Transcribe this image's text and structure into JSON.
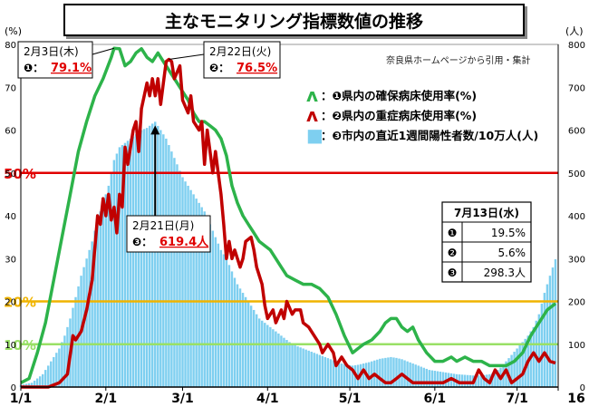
{
  "chart_data": {
    "title": "主なモニタリング指標数値の推移",
    "source_note": "奈良県ホームページから引用・集計",
    "y_left_unit": "(%)",
    "y_right_unit": "(人)",
    "y_left_ticks": [
      "0",
      "10",
      "20",
      "30",
      "40",
      "50",
      "60",
      "70",
      "80"
    ],
    "y_right_ticks": [
      "0",
      "100",
      "200",
      "300",
      "400",
      "500",
      "600",
      "700",
      "800"
    ],
    "ylim_left": [
      0,
      80
    ],
    "ylim_right": [
      0,
      800
    ],
    "x_ticks": [
      {
        "label": "1/1",
        "day": 0
      },
      {
        "label": "2/1",
        "day": 31
      },
      {
        "label": "3/1",
        "day": 59
      },
      {
        "label": "4/1",
        "day": 90
      },
      {
        "label": "5/1",
        "day": 120
      },
      {
        "label": "6/1",
        "day": 151
      },
      {
        "label": "7/1",
        "day": 181
      },
      {
        "label": "16",
        "day": 196
      }
    ],
    "x_range_days": [
      0,
      196
    ],
    "reference_lines": [
      {
        "value": 50,
        "label": "50%",
        "color": "#e00000"
      },
      {
        "value": 20,
        "label": "20%",
        "color": "#f0b400"
      },
      {
        "value": 10,
        "label": "10%",
        "color": "#99e066"
      }
    ],
    "legend": [
      {
        "marker": "ʌ",
        "text": "：❶県内の確保病床使用率(%)",
        "color": "#2db34a"
      },
      {
        "marker": "ʌ",
        "text": "：❷県内の重症病床使用率(%)",
        "color": "#c00000"
      },
      {
        "marker": "■",
        "text": "：❸市内の直近1週間陽性者数/10万人(人)",
        "color": "#7ecff0"
      }
    ],
    "series": [
      {
        "name": "❶県内の確保病床使用率(%)",
        "color": "#2db34a",
        "axis": "left",
        "points": [
          [
            0,
            1
          ],
          [
            3,
            2
          ],
          [
            6,
            8
          ],
          [
            9,
            15
          ],
          [
            12,
            25
          ],
          [
            15,
            35
          ],
          [
            18,
            45
          ],
          [
            21,
            55
          ],
          [
            24,
            62
          ],
          [
            27,
            68
          ],
          [
            30,
            72
          ],
          [
            33,
            77
          ],
          [
            34,
            79.1
          ],
          [
            36,
            79
          ],
          [
            38,
            75
          ],
          [
            40,
            76
          ],
          [
            42,
            78
          ],
          [
            44,
            79
          ],
          [
            46,
            77
          ],
          [
            48,
            76
          ],
          [
            50,
            78
          ],
          [
            52,
            76
          ],
          [
            53,
            75
          ],
          [
            55,
            73
          ],
          [
            57,
            71
          ],
          [
            59,
            69
          ],
          [
            61,
            67
          ],
          [
            63,
            64
          ],
          [
            65,
            62
          ],
          [
            67,
            62
          ],
          [
            69,
            61
          ],
          [
            71,
            60
          ],
          [
            73,
            58
          ],
          [
            75,
            54
          ],
          [
            77,
            47
          ],
          [
            79,
            43
          ],
          [
            81,
            40
          ],
          [
            83,
            38
          ],
          [
            85,
            36
          ],
          [
            87,
            34
          ],
          [
            89,
            33
          ],
          [
            91,
            32
          ],
          [
            93,
            30
          ],
          [
            95,
            28
          ],
          [
            97,
            26
          ],
          [
            100,
            25
          ],
          [
            103,
            24
          ],
          [
            106,
            24
          ],
          [
            109,
            23
          ],
          [
            112,
            21
          ],
          [
            115,
            17
          ],
          [
            118,
            12
          ],
          [
            121,
            8
          ],
          [
            123,
            9
          ],
          [
            125,
            10
          ],
          [
            128,
            11
          ],
          [
            131,
            13
          ],
          [
            133,
            15
          ],
          [
            135,
            16
          ],
          [
            137,
            16
          ],
          [
            139,
            14
          ],
          [
            141,
            13
          ],
          [
            143,
            14
          ],
          [
            145,
            11
          ],
          [
            148,
            8
          ],
          [
            151,
            6
          ],
          [
            154,
            6
          ],
          [
            157,
            7
          ],
          [
            159,
            6
          ],
          [
            162,
            7
          ],
          [
            165,
            6
          ],
          [
            168,
            6
          ],
          [
            171,
            5
          ],
          [
            174,
            5
          ],
          [
            177,
            5
          ],
          [
            180,
            6
          ],
          [
            183,
            8
          ],
          [
            186,
            12
          ],
          [
            189,
            15
          ],
          [
            192,
            18
          ],
          [
            195,
            19.5
          ]
        ]
      },
      {
        "name": "❷県内の重症病床使用率(%)",
        "color": "#c00000",
        "axis": "left",
        "points": [
          [
            0,
            0
          ],
          [
            10,
            0
          ],
          [
            14,
            1
          ],
          [
            17,
            3
          ],
          [
            19,
            12
          ],
          [
            20,
            11
          ],
          [
            22,
            13
          ],
          [
            24,
            18
          ],
          [
            26,
            25
          ],
          [
            28,
            40
          ],
          [
            29,
            38
          ],
          [
            30,
            44
          ],
          [
            31,
            40
          ],
          [
            32,
            45
          ],
          [
            33,
            39
          ],
          [
            34,
            42
          ],
          [
            35,
            36
          ],
          [
            36,
            45
          ],
          [
            37,
            42
          ],
          [
            38,
            56
          ],
          [
            39,
            52
          ],
          [
            41,
            60
          ],
          [
            42,
            62
          ],
          [
            43,
            55
          ],
          [
            44,
            65
          ],
          [
            46,
            71
          ],
          [
            47,
            68
          ],
          [
            48,
            72
          ],
          [
            49,
            68
          ],
          [
            50,
            72
          ],
          [
            51,
            66
          ],
          [
            52,
            71
          ],
          [
            53,
            76
          ],
          [
            54,
            76.5
          ],
          [
            55,
            76
          ],
          [
            56,
            72
          ],
          [
            58,
            75
          ],
          [
            59,
            67
          ],
          [
            61,
            64
          ],
          [
            62,
            68
          ],
          [
            63,
            62
          ],
          [
            65,
            60
          ],
          [
            66,
            62
          ],
          [
            67,
            52
          ],
          [
            68,
            60
          ],
          [
            69,
            55
          ],
          [
            70,
            50
          ],
          [
            71,
            55
          ],
          [
            72,
            50
          ],
          [
            73,
            45
          ],
          [
            74,
            38
          ],
          [
            75,
            30
          ],
          [
            76,
            34
          ],
          [
            77,
            30
          ],
          [
            78,
            32
          ],
          [
            80,
            28
          ],
          [
            81,
            30
          ],
          [
            82,
            34
          ],
          [
            84,
            35
          ],
          [
            85,
            32
          ],
          [
            86,
            28
          ],
          [
            88,
            24
          ],
          [
            89,
            19
          ],
          [
            90,
            16
          ],
          [
            92,
            18
          ],
          [
            93,
            15
          ],
          [
            95,
            18
          ],
          [
            96,
            16
          ],
          [
            97,
            20
          ],
          [
            99,
            17
          ],
          [
            100,
            18
          ],
          [
            102,
            18
          ],
          [
            103,
            15
          ],
          [
            105,
            14
          ],
          [
            107,
            12
          ],
          [
            109,
            10
          ],
          [
            110,
            8
          ],
          [
            112,
            10
          ],
          [
            114,
            8
          ],
          [
            115,
            5
          ],
          [
            117,
            7
          ],
          [
            119,
            5
          ],
          [
            121,
            4
          ],
          [
            123,
            2
          ],
          [
            125,
            4
          ],
          [
            127,
            2
          ],
          [
            129,
            3
          ],
          [
            131,
            2
          ],
          [
            133,
            1
          ],
          [
            135,
            1
          ],
          [
            137,
            2
          ],
          [
            139,
            3
          ],
          [
            141,
            2
          ],
          [
            143,
            1
          ],
          [
            145,
            1
          ],
          [
            148,
            1
          ],
          [
            151,
            1
          ],
          [
            154,
            1
          ],
          [
            157,
            2
          ],
          [
            160,
            1
          ],
          [
            163,
            1
          ],
          [
            165,
            1
          ],
          [
            167,
            4
          ],
          [
            169,
            2
          ],
          [
            171,
            1
          ],
          [
            173,
            4
          ],
          [
            175,
            2
          ],
          [
            177,
            4
          ],
          [
            179,
            1
          ],
          [
            181,
            2
          ],
          [
            183,
            3
          ],
          [
            185,
            6
          ],
          [
            187,
            8
          ],
          [
            189,
            6
          ],
          [
            191,
            8
          ],
          [
            193,
            6
          ],
          [
            195,
            5.6
          ]
        ]
      },
      {
        "name": "❸市内の直近1週間陽性者数/10万人(人)",
        "color": "#7ecff0",
        "axis": "right",
        "points": [
          [
            0,
            5
          ],
          [
            4,
            10
          ],
          [
            8,
            30
          ],
          [
            12,
            70
          ],
          [
            14,
            90
          ],
          [
            16,
            120
          ],
          [
            18,
            160
          ],
          [
            20,
            210
          ],
          [
            22,
            260
          ],
          [
            24,
            300
          ],
          [
            26,
            340
          ],
          [
            28,
            390
          ],
          [
            30,
            430
          ],
          [
            32,
            470
          ],
          [
            34,
            530
          ],
          [
            36,
            560
          ],
          [
            38,
            570
          ],
          [
            40,
            580
          ],
          [
            42,
            590
          ],
          [
            44,
            600
          ],
          [
            46,
            605
          ],
          [
            48,
            615
          ],
          [
            49,
            619.4
          ],
          [
            51,
            600
          ],
          [
            53,
            580
          ],
          [
            55,
            550
          ],
          [
            57,
            520
          ],
          [
            59,
            490
          ],
          [
            61,
            470
          ],
          [
            63,
            450
          ],
          [
            65,
            430
          ],
          [
            67,
            410
          ],
          [
            69,
            380
          ],
          [
            71,
            350
          ],
          [
            73,
            320
          ],
          [
            75,
            300
          ],
          [
            77,
            270
          ],
          [
            79,
            240
          ],
          [
            81,
            220
          ],
          [
            83,
            200
          ],
          [
            85,
            180
          ],
          [
            87,
            160
          ],
          [
            89,
            150
          ],
          [
            91,
            140
          ],
          [
            93,
            130
          ],
          [
            95,
            120
          ],
          [
            97,
            110
          ],
          [
            99,
            100
          ],
          [
            101,
            95
          ],
          [
            103,
            90
          ],
          [
            105,
            85
          ],
          [
            107,
            80
          ],
          [
            109,
            75
          ],
          [
            111,
            70
          ],
          [
            113,
            65
          ],
          [
            115,
            60
          ],
          [
            117,
            55
          ],
          [
            119,
            52
          ],
          [
            121,
            50
          ],
          [
            123,
            52
          ],
          [
            125,
            55
          ],
          [
            127,
            58
          ],
          [
            129,
            62
          ],
          [
            131,
            66
          ],
          [
            133,
            68
          ],
          [
            135,
            70
          ],
          [
            137,
            68
          ],
          [
            139,
            65
          ],
          [
            141,
            60
          ],
          [
            143,
            55
          ],
          [
            145,
            50
          ],
          [
            147,
            45
          ],
          [
            149,
            40
          ],
          [
            151,
            38
          ],
          [
            153,
            36
          ],
          [
            155,
            34
          ],
          [
            157,
            32
          ],
          [
            159,
            30
          ],
          [
            161,
            29
          ],
          [
            163,
            28
          ],
          [
            165,
            27
          ],
          [
            167,
            27
          ],
          [
            169,
            28
          ],
          [
            171,
            30
          ],
          [
            173,
            35
          ],
          [
            175,
            45
          ],
          [
            177,
            60
          ],
          [
            179,
            75
          ],
          [
            181,
            90
          ],
          [
            183,
            105
          ],
          [
            185,
            120
          ],
          [
            187,
            140
          ],
          [
            189,
            170
          ],
          [
            191,
            220
          ],
          [
            193,
            260
          ],
          [
            195,
            298.3
          ]
        ]
      }
    ],
    "annotations": [
      {
        "date": "2月3日(木)",
        "marker": "❶：",
        "value": "79.1%",
        "day": 34,
        "y": 79.1,
        "color": "#2db34a"
      },
      {
        "date": "2月22日(火)",
        "marker": "❷：",
        "value": "76.5%",
        "day": 54,
        "y": 76.5,
        "color": "#c00000"
      },
      {
        "date": "2月21日(月)",
        "marker": "❸：",
        "value": "619.4人",
        "day": 49,
        "y_right": 619.4,
        "color": "#000000"
      }
    ],
    "summary_table": {
      "title": "7月13日(水)",
      "rows": [
        {
          "marker": "❶",
          "value": "19.5%"
        },
        {
          "marker": "❷",
          "value": "5.6%"
        },
        {
          "marker": "❸",
          "value": "298.3人"
        }
      ]
    }
  }
}
